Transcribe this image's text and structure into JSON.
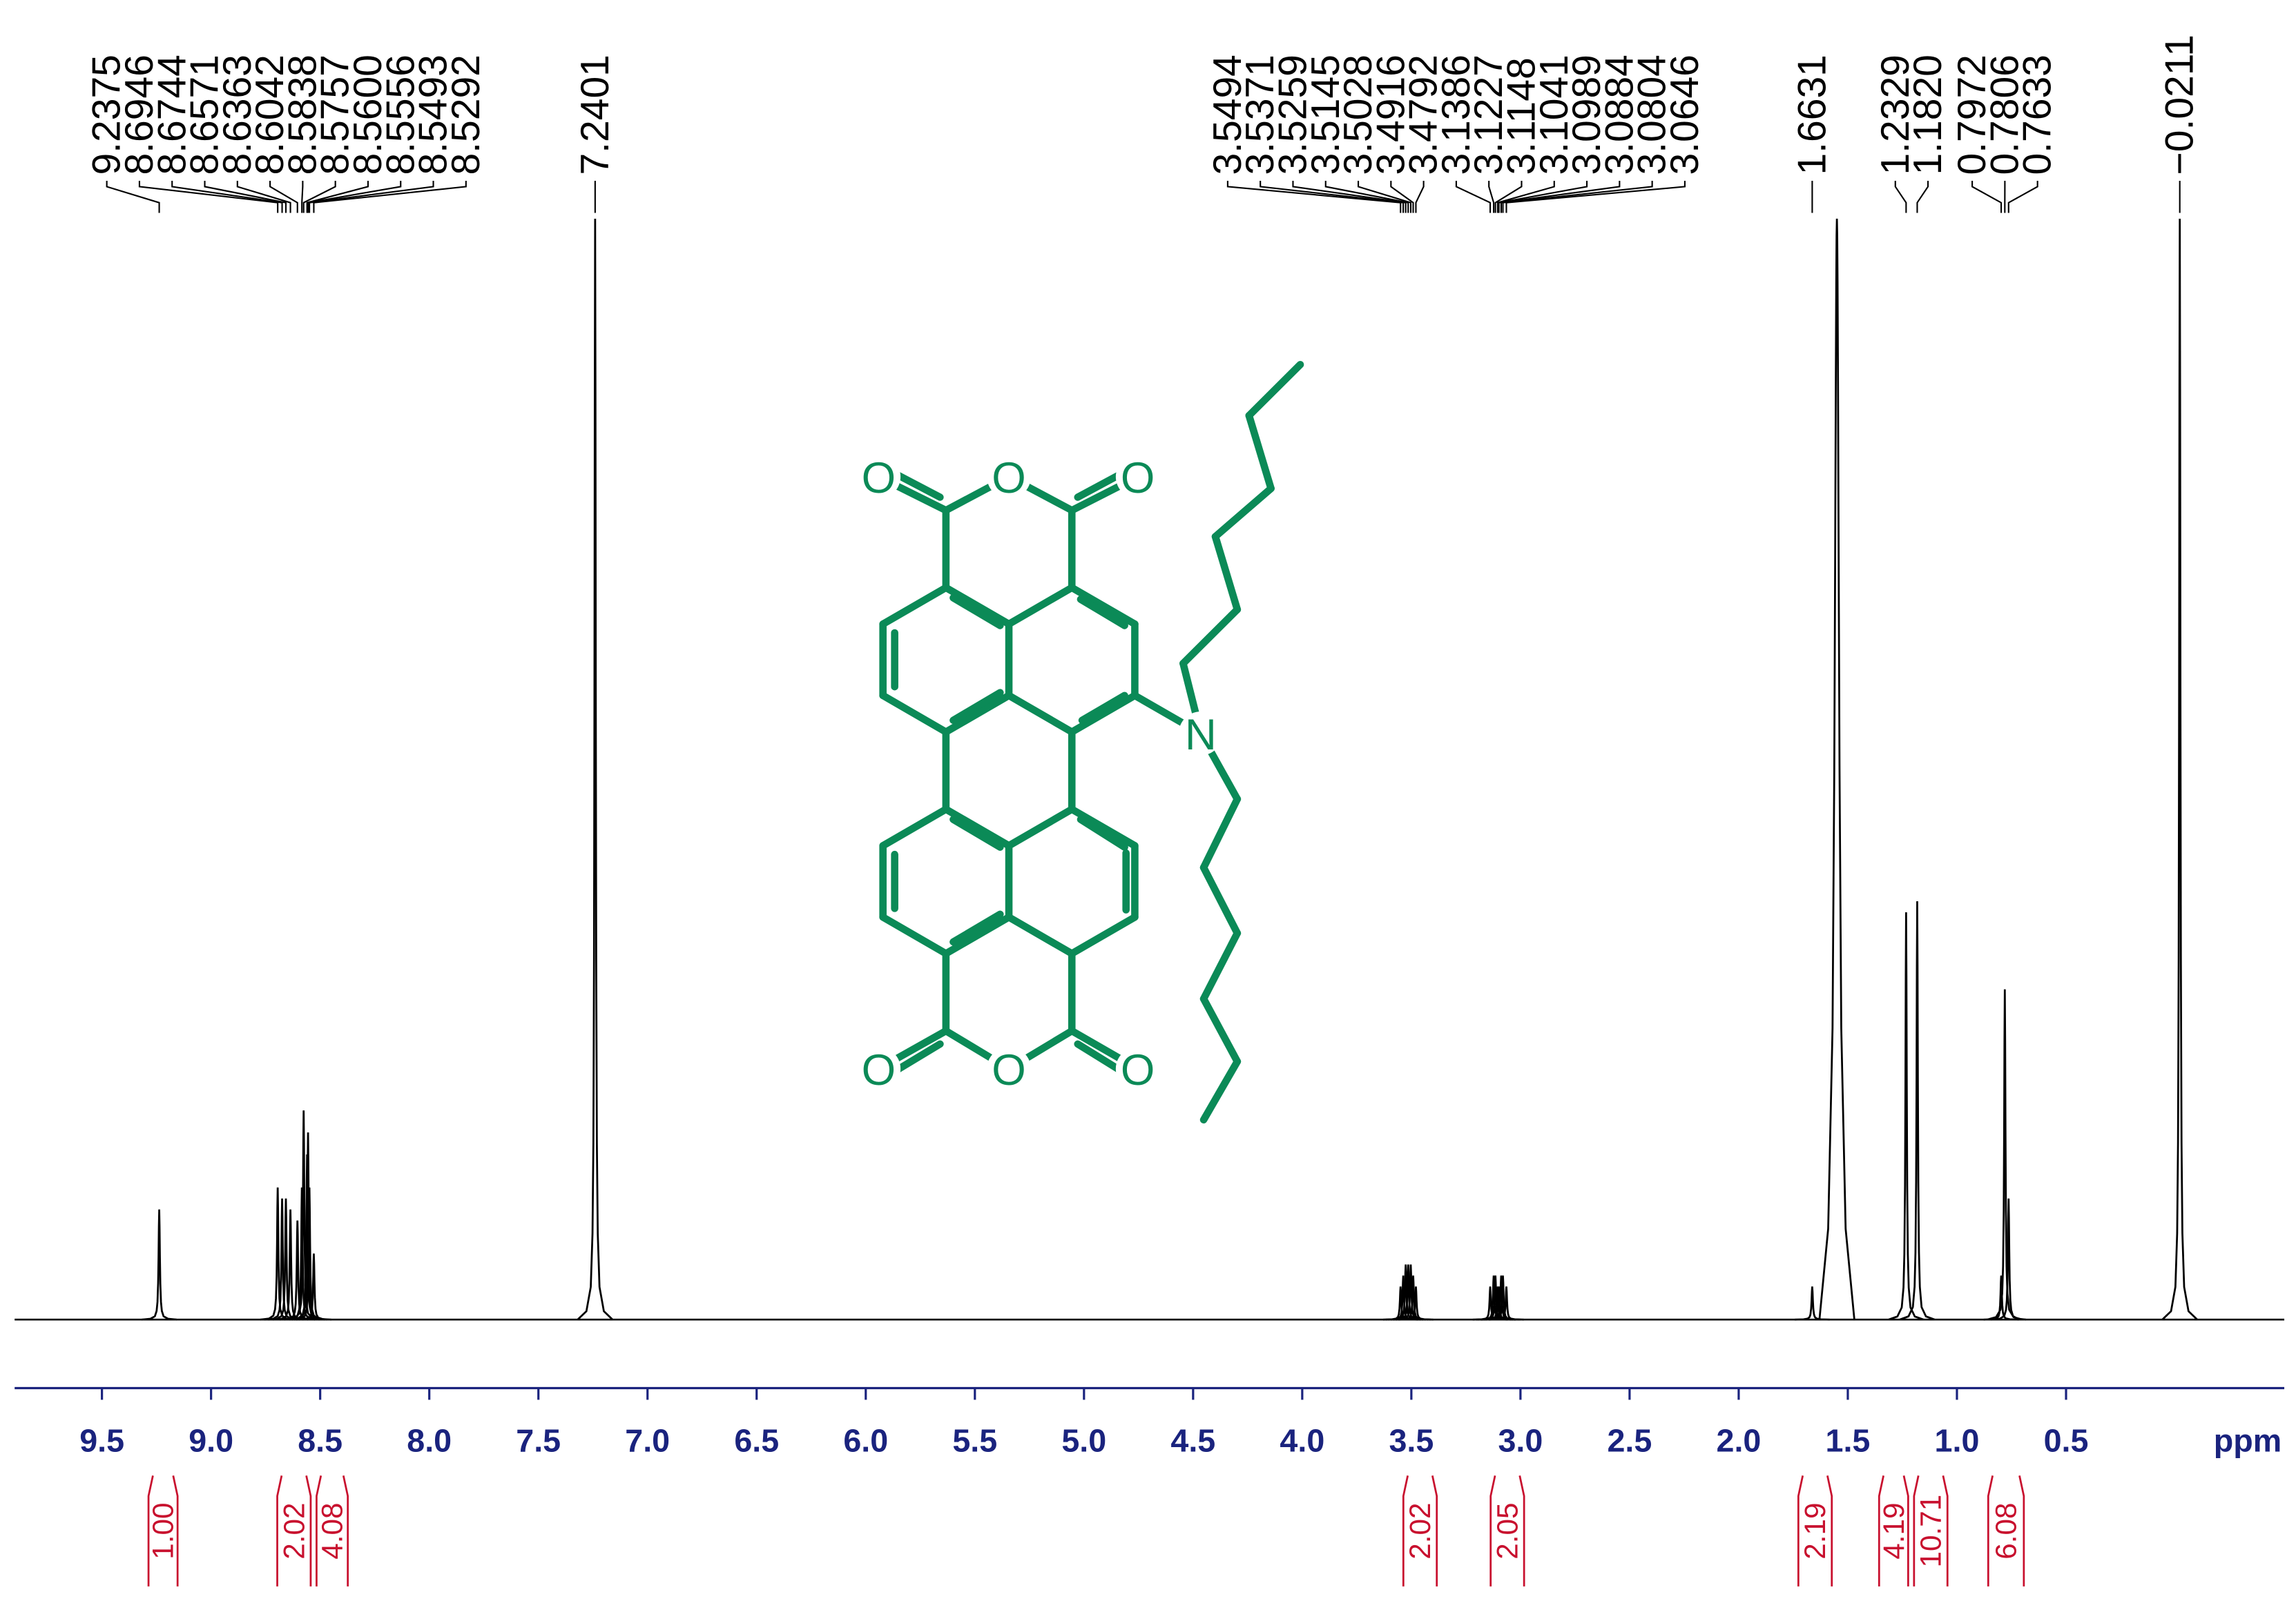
{
  "chart_data": {
    "type": "nmr",
    "x_label": "ppm",
    "xlim": [
      9.9,
      -0.5
    ],
    "xticks": [
      9.5,
      {
        "value": 9,
        "label": "9.0"
      },
      8.5,
      {
        "value": 8,
        "label": "8.0"
      },
      7.5,
      {
        "value": 7,
        "label": "7.0"
      },
      6.5,
      {
        "value": 6,
        "label": "6.0"
      },
      5.5,
      {
        "value": 5,
        "label": "5.0"
      },
      4.5,
      {
        "value": 4,
        "label": "4.0"
      },
      3.5,
      {
        "value": 3,
        "label": "3.0"
      },
      2.5,
      {
        "value": 2,
        "label": "2.0"
      },
      1.5,
      {
        "value": 1,
        "label": "1.0"
      },
      0.5
    ],
    "color": "#000000",
    "axis_color": "#1a237e",
    "integral_color": "#c8102e",
    "peaks": {
      "ppm": [
        9.2375,
        8.6946,
        8.6744,
        8.6571,
        8.6363,
        8.6042,
        8.5838,
        8.5757,
        {
          "value": 8.56,
          "label": "8.5600"
        },
        8.5556,
        8.5493,
        8.5292,
        7.2401,
        3.5494,
        3.5371,
        3.5259,
        3.5145,
        3.5028,
        3.4916,
        3.4792,
        3.1386,
        3.1227,
        3.1148,
        3.1041,
        3.0989,
        3.0884,
        3.0804,
        3.0646,
        1.6631,
        1.2329,
        {
          "value": 1.182,
          "label": "1.1820"
        },
        0.7972,
        0.7806,
        0.7633,
        {
          "value": -0.0211,
          "label": "−0.0211"
        }
      ],
      "heights": [
        10,
        12,
        11,
        11,
        10,
        9,
        12,
        19,
        15,
        17,
        12,
        6,
        100,
        3,
        4,
        5,
        5,
        5,
        4,
        3,
        3,
        4,
        4,
        3,
        3,
        4,
        4,
        3,
        3,
        37,
        38,
        4,
        30,
        11,
        100
      ]
    },
    "unlabeled_peaks": {
      "ppm": [
        1.55
      ],
      "heights": [
        100
      ]
    },
    "integrals": {
      "ranges": [
        [
          9.3,
          9.14
        ],
        [
          8.71,
          8.53
        ],
        [
          8.53,
          8.36
        ],
        [
          3.55,
          3.37
        ],
        [
          3.15,
          2.97
        ],
        [
          1.74,
          1.56
        ],
        [
          1.37,
          1.21
        ],
        [
          1.21,
          1.03
        ],
        [
          0.87,
          0.68
        ]
      ],
      "values": [
        1,
        2.02,
        4.08,
        2.02,
        2.05,
        2.19,
        4.19,
        10.71,
        6.08
      ],
      "value_labels": [
        "1.00",
        "2.02",
        "4.08",
        "2.02",
        "2.05",
        "2.19",
        "4.19",
        "10.71",
        "6.08"
      ]
    },
    "structure": {
      "color": "#0b8a57",
      "atom_labels": [
        "O",
        "O",
        "O",
        "O",
        "O",
        "O",
        "N"
      ]
    }
  }
}
